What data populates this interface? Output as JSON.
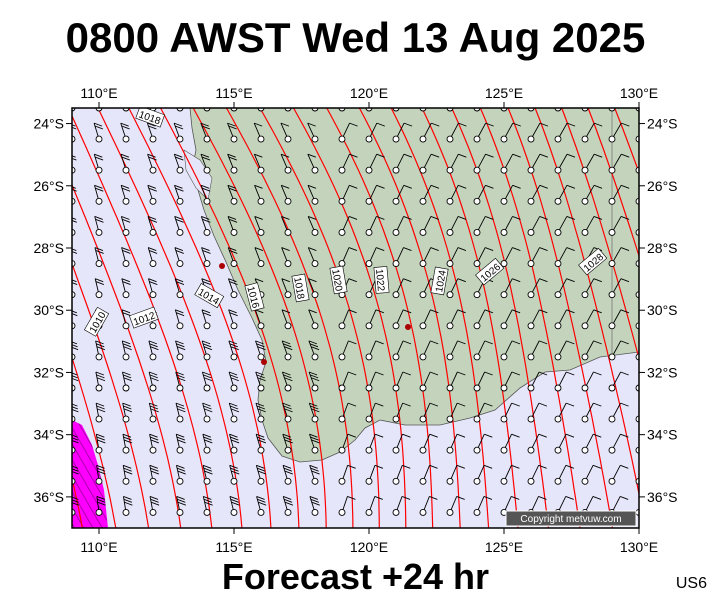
{
  "header": {
    "title": "0800 AWST Wed 13 Aug 2025"
  },
  "footer": {
    "forecast": "Forecast +24 hr",
    "model": "US6"
  },
  "copyright": "Copyright metvuw.com",
  "map": {
    "lon_ticks": [
      {
        "value": 110,
        "label": "110°E"
      },
      {
        "value": 115,
        "label": "115°E"
      },
      {
        "value": 120,
        "label": "120°E"
      },
      {
        "value": 125,
        "label": "125°E"
      },
      {
        "value": 130,
        "label": "130°E"
      }
    ],
    "lat_ticks": [
      {
        "value": -24,
        "label": "24°S"
      },
      {
        "value": -26,
        "label": "26°S"
      },
      {
        "value": -28,
        "label": "28°S"
      },
      {
        "value": -30,
        "label": "30°S"
      },
      {
        "value": -32,
        "label": "32°S"
      },
      {
        "value": -34,
        "label": "34°S"
      },
      {
        "value": -36,
        "label": "36°S"
      }
    ],
    "lon_range": [
      109,
      130
    ],
    "lat_range": [
      -37,
      -23.5
    ],
    "colors": {
      "sea": "#e6e6fa",
      "land": "#c4d4bc",
      "isobar": "#ff0000",
      "rain": "#ff00ff",
      "wind": "#000000"
    },
    "isobar_labels": [
      "1010",
      "1012",
      "1014",
      "1016",
      "1018",
      "1020",
      "1022",
      "1024",
      "1026",
      "1028",
      "1018"
    ]
  }
}
